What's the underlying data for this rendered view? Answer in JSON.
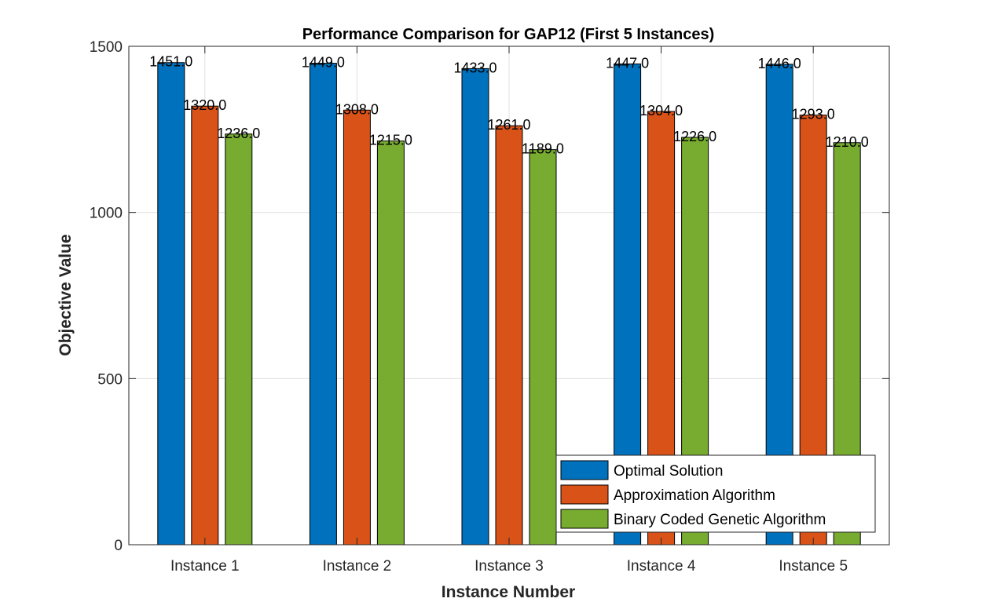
{
  "chart_data": {
    "type": "bar",
    "title": "Performance Comparison for GAP12 (First 5 Instances)",
    "xlabel": "Instance Number",
    "ylabel": "Objective Value",
    "categories": [
      "Instance 1",
      "Instance 2",
      "Instance 3",
      "Instance 4",
      "Instance 5"
    ],
    "ylim": [
      0,
      1500
    ],
    "yticks": [
      0,
      500,
      1000,
      1500
    ],
    "grid": true,
    "legend_position": "bottom-right",
    "series": [
      {
        "name": "Optimal Solution",
        "color": "#0072BD",
        "values": [
          1451,
          1449,
          1433,
          1447,
          1446
        ],
        "labels": [
          "1451.0",
          "1449.0",
          "1433.0",
          "1447.0",
          "1446.0"
        ]
      },
      {
        "name": "Approximation Algorithm",
        "color": "#D95319",
        "values": [
          1320,
          1308,
          1261,
          1304,
          1293
        ],
        "labels": [
          "1320.0",
          "1308.0",
          "1261.0",
          "1304.0",
          "1293.0"
        ]
      },
      {
        "name": "Binary Coded Genetic Algorithm",
        "color": "#77AC30",
        "values": [
          1236,
          1215,
          1189,
          1226,
          1210
        ],
        "labels": [
          "1236.0",
          "1215.0",
          "1189.0",
          "1226.0",
          "1210.0"
        ]
      }
    ]
  }
}
